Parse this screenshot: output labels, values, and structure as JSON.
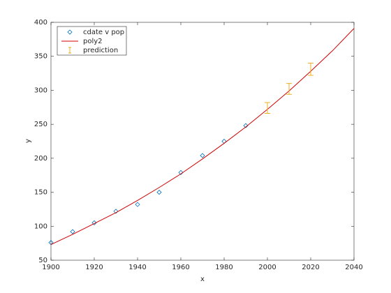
{
  "chart_data": {
    "type": "line",
    "xlabel": "x",
    "ylabel": "y",
    "xlim": [
      1900,
      2040
    ],
    "xticks": [
      1900,
      1920,
      1940,
      1960,
      1980,
      2000,
      2020,
      2040
    ],
    "ylim": [
      50,
      400
    ],
    "yticks": [
      50,
      100,
      150,
      200,
      250,
      300,
      350,
      400
    ],
    "grid": false,
    "legend": "northwest",
    "series": [
      {
        "name": "cdate v pop",
        "kind": "marker",
        "color": "#0072bd",
        "x": [
          1900,
          1910,
          1920,
          1930,
          1940,
          1950,
          1960,
          1970,
          1980,
          1990
        ],
        "values": [
          76,
          92,
          105,
          122,
          132,
          150,
          179,
          204,
          225,
          248
        ]
      },
      {
        "name": "poly2",
        "kind": "line",
        "color": "#d00000",
        "x": [
          1900,
          1910,
          1920,
          1930,
          1940,
          1950,
          1960,
          1970,
          1980,
          1990,
          2000,
          2010,
          2020,
          2030,
          2040
        ],
        "values": [
          73,
          88,
          104,
          120,
          138,
          157,
          177,
          199,
          222,
          246,
          272,
          299,
          328,
          358,
          391
        ]
      },
      {
        "name": "prediction",
        "kind": "errorbar",
        "color": "#edb120",
        "x": [
          2000,
          2010,
          2020
        ],
        "values": [
          274,
          302,
          331
        ],
        "errors": [
          8,
          8,
          9
        ]
      }
    ]
  }
}
